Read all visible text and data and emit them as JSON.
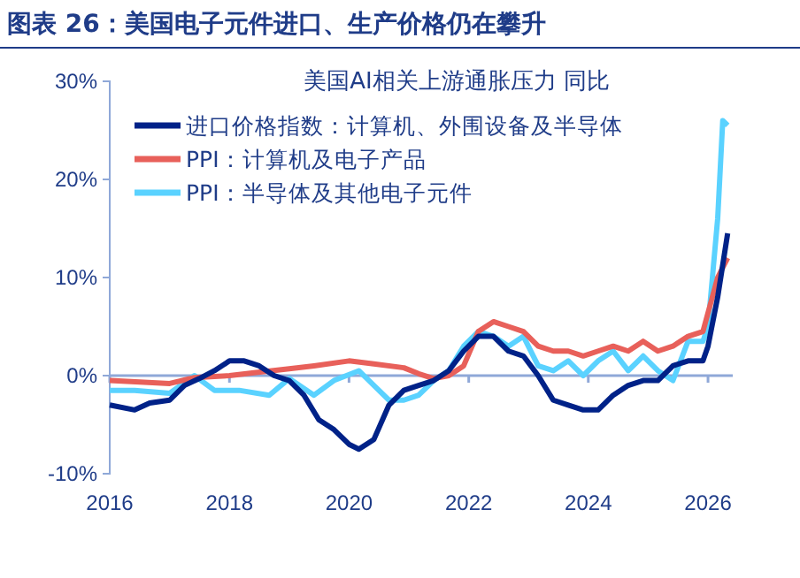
{
  "chart_data": {
    "type": "line",
    "title": "图表 26：美国电子元件进口、生产价格仍在攀升",
    "subtitle": "美国AI相关上游通胀压力 同比",
    "xlim": [
      "2016-01",
      "2026-06"
    ],
    "xticks": [
      {
        "value": "2016-01",
        "label": "2016"
      },
      {
        "value": "2018-01",
        "label": "2018"
      },
      {
        "value": "2020-01",
        "label": "2020"
      },
      {
        "value": "2022-01",
        "label": "2022"
      },
      {
        "value": "2024-01",
        "label": "2024"
      },
      {
        "value": "2026-01",
        "label": "2026"
      }
    ],
    "ylim": [
      -10,
      30
    ],
    "yticks": [
      {
        "value": -10,
        "label": "-10%"
      },
      {
        "value": 0,
        "label": "0%"
      },
      {
        "value": 10,
        "label": "10%"
      },
      {
        "value": 20,
        "label": "20%"
      },
      {
        "value": 30,
        "label": "30%"
      }
    ],
    "grid": false,
    "ref_lines": [
      {
        "axis": "y",
        "value": 0,
        "color": "#8fa8d8"
      }
    ],
    "legend": "top left",
    "line_style": "solid",
    "marker": "none",
    "series": [
      {
        "name": "进口价格指数：计算机、外围设备及半导体",
        "color": "#002288",
        "x": [
          "2016-01",
          "2016-06",
          "2016-09",
          "2017-01",
          "2017-04",
          "2017-07",
          "2017-10",
          "2018-01",
          "2018-04",
          "2018-07",
          "2018-10",
          "2019-01",
          "2019-04",
          "2019-07",
          "2019-10",
          "2020-01",
          "2020-03",
          "2020-06",
          "2020-09",
          "2020-12",
          "2021-03",
          "2021-06",
          "2021-09",
          "2021-12",
          "2022-03",
          "2022-06",
          "2022-09",
          "2022-12",
          "2023-03",
          "2023-06",
          "2023-09",
          "2023-12",
          "2024-03",
          "2024-06",
          "2024-09",
          "2024-12",
          "2025-03",
          "2025-06",
          "2025-09",
          "2025-12",
          "2026-01",
          "2026-03",
          "2026-05"
        ],
        "values": [
          -3,
          -3.5,
          -2.8,
          -2.5,
          -1,
          -0.3,
          0.5,
          1.5,
          1.5,
          1,
          0,
          -0.5,
          -2,
          -4.5,
          -5.5,
          -7,
          -7.5,
          -6.5,
          -3,
          -1.5,
          -1,
          -0.5,
          0.5,
          2.5,
          4,
          4,
          2.5,
          2,
          0,
          -2.5,
          -3,
          -3.5,
          -3.5,
          -2,
          -1,
          -0.5,
          -0.5,
          1,
          1.5,
          1.5,
          3,
          8,
          14.5
        ]
      },
      {
        "name": "PPI：计算机及电子产品",
        "color": "#e8605a",
        "x": [
          "2016-01",
          "2017-01",
          "2017-06",
          "2018-01",
          "2018-06",
          "2019-01",
          "2019-06",
          "2020-01",
          "2020-06",
          "2020-12",
          "2021-03",
          "2021-06",
          "2021-09",
          "2021-12",
          "2022-03",
          "2022-06",
          "2022-09",
          "2022-12",
          "2023-03",
          "2023-06",
          "2023-09",
          "2023-12",
          "2024-03",
          "2024-06",
          "2024-09",
          "2024-12",
          "2025-03",
          "2025-06",
          "2025-09",
          "2025-12",
          "2026-03",
          "2026-05"
        ],
        "values": [
          -0.5,
          -0.8,
          -0.2,
          0,
          0.3,
          0.7,
          1,
          1.5,
          1.2,
          0.8,
          0.2,
          -0.3,
          0,
          1,
          4.5,
          5.5,
          5,
          4.5,
          3,
          2.5,
          2.5,
          2,
          2.5,
          3,
          2.5,
          3.5,
          2.5,
          3,
          4,
          4.5,
          10,
          12
        ]
      },
      {
        "name": "PPI：半导体及其他电子元件",
        "color": "#5ad2ff",
        "x": [
          "2016-01",
          "2016-06",
          "2017-01",
          "2017-06",
          "2017-10",
          "2018-03",
          "2018-09",
          "2019-01",
          "2019-06",
          "2019-10",
          "2020-03",
          "2020-06",
          "2020-09",
          "2020-12",
          "2021-03",
          "2021-06",
          "2021-09",
          "2021-12",
          "2022-03",
          "2022-06",
          "2022-09",
          "2022-12",
          "2023-03",
          "2023-06",
          "2023-09",
          "2023-12",
          "2024-03",
          "2024-06",
          "2024-09",
          "2024-12",
          "2025-03",
          "2025-06",
          "2025-09",
          "2025-12",
          "2026-01",
          "2026-03",
          "2026-04",
          "2026-05"
        ],
        "values": [
          -1.5,
          -1.5,
          -1.8,
          0,
          -1.5,
          -1.5,
          -2,
          -0.3,
          -2,
          -0.5,
          0.5,
          -1,
          -2.5,
          -2.5,
          -2,
          -0.5,
          0.5,
          3,
          4.5,
          4,
          3,
          4,
          1,
          0.5,
          1.5,
          0,
          1.5,
          2.5,
          0.5,
          2,
          0.5,
          -0.5,
          3.5,
          3.5,
          5,
          16,
          26,
          25.5
        ]
      }
    ]
  }
}
